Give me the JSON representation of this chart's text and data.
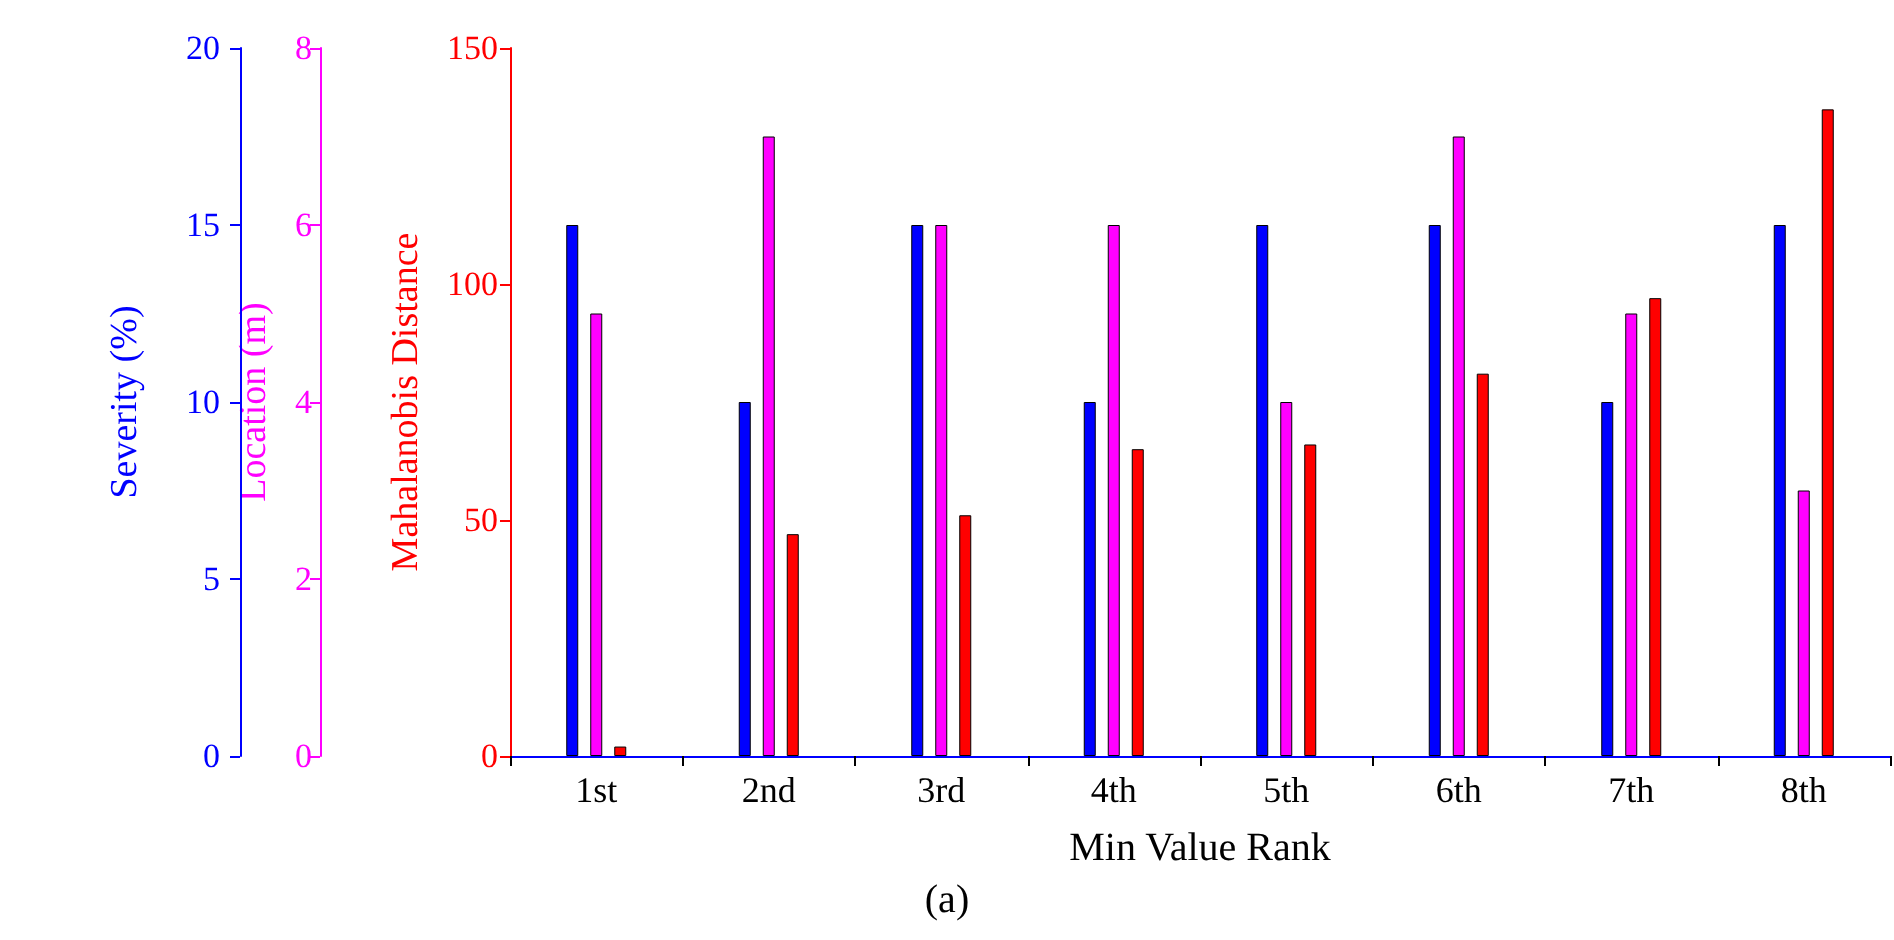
{
  "chart_data": {
    "type": "bar",
    "xlabel": "Min Value Rank",
    "ylabel": "Mahalanobis Distance",
    "y2label": "Location (m)",
    "y3label": "Severity (%)",
    "annotations": [
      "(a)"
    ],
    "categories": [
      "1st",
      "2nd",
      "3rd",
      "4th",
      "5th",
      "6th",
      "7th",
      "8th"
    ],
    "ylim": [
      0,
      150
    ],
    "yticks": [
      0,
      50,
      100,
      150
    ],
    "y2lim": [
      0,
      8
    ],
    "y2ticks": [
      0,
      2,
      4,
      6,
      8
    ],
    "y3lim": [
      0,
      20
    ],
    "y3ticks": [
      0,
      5,
      10,
      15,
      20
    ],
    "grid": false,
    "series": [
      {
        "color": "#0000ff",
        "axis": "y3",
        "values": [
          15,
          10,
          15,
          10,
          15,
          15,
          10,
          15
        ]
      },
      {
        "color": "#ff00ff",
        "axis": "y2",
        "values": [
          5,
          7,
          6,
          6,
          4,
          7,
          5,
          3
        ]
      },
      {
        "color": "#ff0000",
        "values": [
          2,
          47,
          51,
          65,
          66,
          81,
          97,
          137
        ]
      }
    ]
  }
}
